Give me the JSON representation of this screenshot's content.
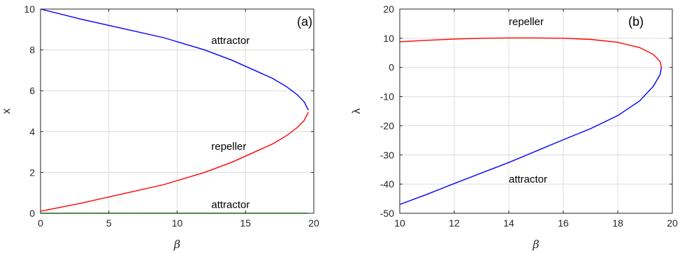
{
  "colors": {
    "attractor": "#0000ff",
    "repeller": "#ff0000",
    "zero_attractor": "#00cc00",
    "axis": "#262626",
    "grid": "#dcdcdc"
  },
  "chart_data": [
    {
      "type": "line",
      "panel": "(a)",
      "title": "",
      "xlabel": "β",
      "ylabel": "x",
      "xlim": [
        0,
        20
      ],
      "ylim": [
        0,
        10
      ],
      "xticks": [
        0,
        5,
        10,
        15,
        20
      ],
      "yticks": [
        0,
        2,
        4,
        6,
        8,
        10
      ],
      "grid": true,
      "annotations": [
        {
          "text": "attractor",
          "x": 12.5,
          "y": 8.3
        },
        {
          "text": "repeller",
          "x": 12.5,
          "y": 3.1
        },
        {
          "text": "attractor",
          "x": 12.5,
          "y": 0.25
        }
      ],
      "series": [
        {
          "role": "attractor",
          "color": "#0000ff",
          "x": [
            0,
            3,
            6,
            9,
            12,
            14,
            16,
            17,
            18,
            18.8,
            19.3,
            19.6
          ],
          "y": [
            10,
            9.5,
            9.05,
            8.6,
            8.0,
            7.5,
            6.9,
            6.6,
            6.2,
            5.8,
            5.45,
            5.05
          ]
        },
        {
          "role": "repeller",
          "color": "#ff0000",
          "x": [
            0,
            3,
            6,
            9,
            12,
            14,
            16,
            17,
            18,
            18.8,
            19.3,
            19.6
          ],
          "y": [
            0.1,
            0.5,
            0.95,
            1.4,
            2.0,
            2.5,
            3.1,
            3.4,
            3.8,
            4.2,
            4.55,
            4.95
          ]
        },
        {
          "role": "attractor",
          "color": "#00cc00",
          "x": [
            0,
            19.6
          ],
          "y": [
            0,
            0
          ]
        }
      ]
    },
    {
      "type": "line",
      "panel": "(b)",
      "title": "",
      "xlabel": "β",
      "ylabel": "λ",
      "xlim": [
        10,
        20
      ],
      "ylim": [
        -50,
        20
      ],
      "xticks": [
        10,
        12,
        14,
        16,
        18,
        20
      ],
      "yticks": [
        -50,
        -40,
        -30,
        -20,
        -10,
        0,
        10,
        20
      ],
      "grid": true,
      "annotations": [
        {
          "text": "repeller",
          "x": 14.0,
          "y": 14.5
        },
        {
          "text": "attractor",
          "x": 14.0,
          "y": -39.5
        }
      ],
      "series": [
        {
          "role": "repeller",
          "color": "#ff0000",
          "x": [
            10,
            11,
            12,
            13,
            14,
            15,
            16,
            17,
            18,
            18.8,
            19.3,
            19.55,
            19.6
          ],
          "y": [
            8.8,
            9.3,
            9.7,
            10.0,
            10.1,
            10.1,
            10.0,
            9.6,
            8.6,
            6.8,
            4.5,
            2.0,
            0
          ]
        },
        {
          "role": "attractor",
          "color": "#0000ff",
          "x": [
            19.6,
            19.55,
            19.3,
            18.8,
            18,
            17,
            16,
            15,
            14,
            13,
            12,
            11,
            10
          ],
          "y": [
            0,
            -2.5,
            -6.5,
            -11.5,
            -16.5,
            -21.0,
            -24.8,
            -28.7,
            -32.6,
            -36.2,
            -39.8,
            -43.5,
            -47.0
          ]
        }
      ]
    }
  ]
}
